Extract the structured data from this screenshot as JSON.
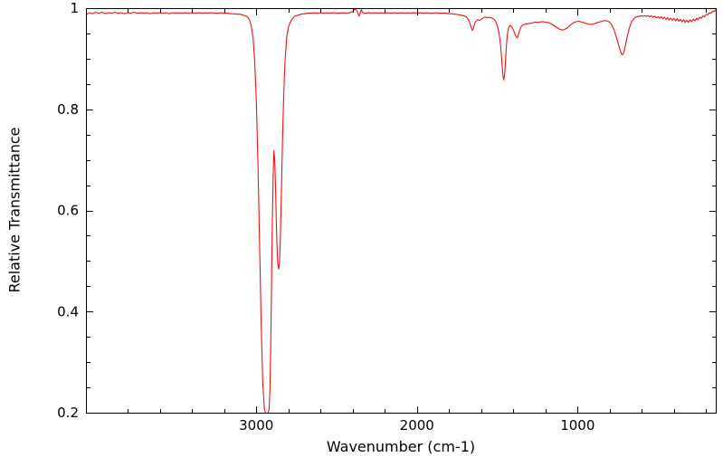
{
  "chart_data": {
    "type": "line",
    "title": "",
    "xlabel": "Wavenumber (cm-1)",
    "ylabel": "Relative Transmittance",
    "x_axis_reversed": true,
    "xlim": [
      4060,
      140
    ],
    "ylim": [
      0.2,
      1.0
    ],
    "grid": false,
    "legend": "none",
    "line_color": "#ee1111",
    "background": "#ffffff",
    "x_ticks": [
      {
        "value": 3000,
        "label": "3000"
      },
      {
        "value": 2000,
        "label": "2000"
      },
      {
        "value": 1000,
        "label": "1000"
      }
    ],
    "y_ticks": [
      {
        "value": 1.0,
        "label": "1"
      },
      {
        "value": 0.8,
        "label": "0.8"
      },
      {
        "value": 0.6,
        "label": "0.6"
      },
      {
        "value": 0.4,
        "label": "0.4"
      },
      {
        "value": 0.2,
        "label": "0.2"
      }
    ],
    "x_minor_step": 200,
    "y_minor_step": 0.05,
    "peak_annotations": [
      {
        "wavenumber": 2940,
        "transmittance": 0.2
      },
      {
        "wavenumber": 2860,
        "transmittance": 0.48
      },
      {
        "wavenumber": 1460,
        "transmittance": 0.86
      },
      {
        "wavenumber": 1375,
        "transmittance": 0.94
      },
      {
        "wavenumber": 720,
        "transmittance": 0.91
      }
    ],
    "points": [
      [
        4059,
        0.987
      ],
      [
        4040,
        0.991
      ],
      [
        4020,
        0.989
      ],
      [
        4000,
        0.992
      ],
      [
        3980,
        0.99
      ],
      [
        3960,
        0.992
      ],
      [
        3940,
        0.989
      ],
      [
        3920,
        0.991
      ],
      [
        3900,
        0.99
      ],
      [
        3880,
        0.992
      ],
      [
        3860,
        0.99
      ],
      [
        3840,
        0.991
      ],
      [
        3820,
        0.989
      ],
      [
        3800,
        0.991
      ],
      [
        3780,
        0.99
      ],
      [
        3760,
        0.992
      ],
      [
        3740,
        0.99
      ],
      [
        3720,
        0.991
      ],
      [
        3700,
        0.99
      ],
      [
        3680,
        0.991
      ],
      [
        3660,
        0.989
      ],
      [
        3640,
        0.991
      ],
      [
        3620,
        0.99
      ],
      [
        3600,
        0.991
      ],
      [
        3580,
        0.99
      ],
      [
        3560,
        0.991
      ],
      [
        3540,
        0.989
      ],
      [
        3520,
        0.991
      ],
      [
        3500,
        0.99
      ],
      [
        3480,
        0.991
      ],
      [
        3460,
        0.99
      ],
      [
        3440,
        0.991
      ],
      [
        3420,
        0.99
      ],
      [
        3400,
        0.991
      ],
      [
        3380,
        0.99
      ],
      [
        3360,
        0.991
      ],
      [
        3340,
        0.99
      ],
      [
        3320,
        0.991
      ],
      [
        3300,
        0.99
      ],
      [
        3280,
        0.991
      ],
      [
        3260,
        0.99
      ],
      [
        3240,
        0.99
      ],
      [
        3220,
        0.991
      ],
      [
        3200,
        0.99
      ],
      [
        3180,
        0.99
      ],
      [
        3160,
        0.989
      ],
      [
        3140,
        0.989
      ],
      [
        3120,
        0.988
      ],
      [
        3100,
        0.988
      ],
      [
        3080,
        0.986
      ],
      [
        3060,
        0.984
      ],
      [
        3050,
        0.981
      ],
      [
        3040,
        0.975
      ],
      [
        3030,
        0.963
      ],
      [
        3020,
        0.941
      ],
      [
        3010,
        0.896
      ],
      [
        3000,
        0.82
      ],
      [
        2990,
        0.7
      ],
      [
        2980,
        0.545
      ],
      [
        2970,
        0.385
      ],
      [
        2960,
        0.262
      ],
      [
        2950,
        0.208
      ],
      [
        2940,
        0.197
      ],
      [
        2930,
        0.196
      ],
      [
        2920,
        0.206
      ],
      [
        2915,
        0.247
      ],
      [
        2910,
        0.33
      ],
      [
        2905,
        0.452
      ],
      [
        2900,
        0.575
      ],
      [
        2895,
        0.665
      ],
      [
        2890,
        0.718
      ],
      [
        2885,
        0.7
      ],
      [
        2880,
        0.645
      ],
      [
        2875,
        0.575
      ],
      [
        2870,
        0.52
      ],
      [
        2865,
        0.492
      ],
      [
        2860,
        0.484
      ],
      [
        2855,
        0.5
      ],
      [
        2850,
        0.545
      ],
      [
        2845,
        0.615
      ],
      [
        2840,
        0.69
      ],
      [
        2835,
        0.76
      ],
      [
        2830,
        0.82
      ],
      [
        2825,
        0.866
      ],
      [
        2820,
        0.9
      ],
      [
        2810,
        0.944
      ],
      [
        2800,
        0.962
      ],
      [
        2790,
        0.971
      ],
      [
        2780,
        0.977
      ],
      [
        2770,
        0.981
      ],
      [
        2760,
        0.984
      ],
      [
        2740,
        0.986
      ],
      [
        2720,
        0.988
      ],
      [
        2700,
        0.989
      ],
      [
        2680,
        0.99
      ],
      [
        2660,
        0.99
      ],
      [
        2640,
        0.991
      ],
      [
        2620,
        0.99
      ],
      [
        2600,
        0.991
      ],
      [
        2580,
        0.99
      ],
      [
        2560,
        0.991
      ],
      [
        2540,
        0.99
      ],
      [
        2520,
        0.991
      ],
      [
        2500,
        0.99
      ],
      [
        2480,
        0.99
      ],
      [
        2460,
        0.991
      ],
      [
        2440,
        0.99
      ],
      [
        2420,
        0.991
      ],
      [
        2400,
        0.993
      ],
      [
        2390,
        0.997
      ],
      [
        2380,
        0.998
      ],
      [
        2370,
        0.992
      ],
      [
        2360,
        0.984
      ],
      [
        2355,
        0.988
      ],
      [
        2350,
        0.994
      ],
      [
        2345,
        0.997
      ],
      [
        2340,
        0.992
      ],
      [
        2330,
        0.99
      ],
      [
        2320,
        0.99
      ],
      [
        2300,
        0.991
      ],
      [
        2280,
        0.99
      ],
      [
        2260,
        0.991
      ],
      [
        2240,
        0.99
      ],
      [
        2220,
        0.991
      ],
      [
        2200,
        0.99
      ],
      [
        2180,
        0.991
      ],
      [
        2160,
        0.99
      ],
      [
        2140,
        0.991
      ],
      [
        2120,
        0.99
      ],
      [
        2100,
        0.991
      ],
      [
        2080,
        0.99
      ],
      [
        2060,
        0.991
      ],
      [
        2040,
        0.99
      ],
      [
        2020,
        0.991
      ],
      [
        2000,
        0.99
      ],
      [
        1980,
        0.991
      ],
      [
        1960,
        0.99
      ],
      [
        1940,
        0.991
      ],
      [
        1920,
        0.99
      ],
      [
        1900,
        0.99
      ],
      [
        1880,
        0.991
      ],
      [
        1860,
        0.99
      ],
      [
        1840,
        0.99
      ],
      [
        1820,
        0.99
      ],
      [
        1800,
        0.989
      ],
      [
        1780,
        0.989
      ],
      [
        1760,
        0.988
      ],
      [
        1740,
        0.987
      ],
      [
        1720,
        0.986
      ],
      [
        1700,
        0.984
      ],
      [
        1690,
        0.982
      ],
      [
        1680,
        0.978
      ],
      [
        1670,
        0.97
      ],
      [
        1660,
        0.96
      ],
      [
        1655,
        0.956
      ],
      [
        1650,
        0.958
      ],
      [
        1645,
        0.964
      ],
      [
        1640,
        0.97
      ],
      [
        1630,
        0.975
      ],
      [
        1620,
        0.977
      ],
      [
        1610,
        0.976
      ],
      [
        1600,
        0.978
      ],
      [
        1590,
        0.98
      ],
      [
        1580,
        0.982
      ],
      [
        1570,
        0.982
      ],
      [
        1560,
        0.981
      ],
      [
        1550,
        0.982
      ],
      [
        1540,
        0.981
      ],
      [
        1530,
        0.98
      ],
      [
        1520,
        0.978
      ],
      [
        1510,
        0.974
      ],
      [
        1500,
        0.966
      ],
      [
        1490,
        0.952
      ],
      [
        1485,
        0.942
      ],
      [
        1480,
        0.928
      ],
      [
        1475,
        0.91
      ],
      [
        1470,
        0.888
      ],
      [
        1465,
        0.868
      ],
      [
        1460,
        0.858
      ],
      [
        1455,
        0.866
      ],
      [
        1450,
        0.888
      ],
      [
        1445,
        0.916
      ],
      [
        1440,
        0.938
      ],
      [
        1435,
        0.952
      ],
      [
        1430,
        0.96
      ],
      [
        1425,
        0.964
      ],
      [
        1420,
        0.966
      ],
      [
        1415,
        0.965
      ],
      [
        1410,
        0.963
      ],
      [
        1405,
        0.96
      ],
      [
        1400,
        0.957
      ],
      [
        1395,
        0.953
      ],
      [
        1390,
        0.949
      ],
      [
        1385,
        0.945
      ],
      [
        1380,
        0.942
      ],
      [
        1375,
        0.941
      ],
      [
        1370,
        0.945
      ],
      [
        1365,
        0.951
      ],
      [
        1360,
        0.957
      ],
      [
        1355,
        0.961
      ],
      [
        1350,
        0.964
      ],
      [
        1340,
        0.967
      ],
      [
        1330,
        0.968
      ],
      [
        1320,
        0.969
      ],
      [
        1310,
        0.969
      ],
      [
        1300,
        0.97
      ],
      [
        1290,
        0.97
      ],
      [
        1280,
        0.971
      ],
      [
        1270,
        0.972
      ],
      [
        1260,
        0.972
      ],
      [
        1250,
        0.972
      ],
      [
        1240,
        0.972
      ],
      [
        1230,
        0.973
      ],
      [
        1220,
        0.973
      ],
      [
        1210,
        0.973
      ],
      [
        1200,
        0.972
      ],
      [
        1190,
        0.972
      ],
      [
        1180,
        0.971
      ],
      [
        1170,
        0.97
      ],
      [
        1160,
        0.968
      ],
      [
        1150,
        0.966
      ],
      [
        1140,
        0.964
      ],
      [
        1130,
        0.962
      ],
      [
        1120,
        0.96
      ],
      [
        1110,
        0.958
      ],
      [
        1100,
        0.957
      ],
      [
        1090,
        0.957
      ],
      [
        1080,
        0.958
      ],
      [
        1070,
        0.96
      ],
      [
        1060,
        0.962
      ],
      [
        1050,
        0.965
      ],
      [
        1040,
        0.968
      ],
      [
        1030,
        0.97
      ],
      [
        1020,
        0.972
      ],
      [
        1010,
        0.973
      ],
      [
        1000,
        0.974
      ],
      [
        990,
        0.974
      ],
      [
        980,
        0.973
      ],
      [
        970,
        0.972
      ],
      [
        960,
        0.971
      ],
      [
        950,
        0.97
      ],
      [
        940,
        0.969
      ],
      [
        930,
        0.968
      ],
      [
        920,
        0.968
      ],
      [
        910,
        0.968
      ],
      [
        900,
        0.969
      ],
      [
        890,
        0.97
      ],
      [
        880,
        0.971
      ],
      [
        870,
        0.972
      ],
      [
        860,
        0.973
      ],
      [
        850,
        0.974
      ],
      [
        840,
        0.975
      ],
      [
        830,
        0.975
      ],
      [
        820,
        0.975
      ],
      [
        810,
        0.974
      ],
      [
        800,
        0.972
      ],
      [
        790,
        0.968
      ],
      [
        780,
        0.962
      ],
      [
        770,
        0.954
      ],
      [
        760,
        0.944
      ],
      [
        750,
        0.933
      ],
      [
        740,
        0.922
      ],
      [
        735,
        0.917
      ],
      [
        730,
        0.912
      ],
      [
        725,
        0.909
      ],
      [
        720,
        0.908
      ],
      [
        715,
        0.91
      ],
      [
        710,
        0.915
      ],
      [
        705,
        0.922
      ],
      [
        700,
        0.93
      ],
      [
        690,
        0.945
      ],
      [
        680,
        0.958
      ],
      [
        670,
        0.968
      ],
      [
        660,
        0.975
      ],
      [
        650,
        0.979
      ],
      [
        640,
        0.982
      ],
      [
        630,
        0.983
      ],
      [
        620,
        0.984
      ],
      [
        610,
        0.984
      ],
      [
        600,
        0.985
      ],
      [
        590,
        0.984
      ],
      [
        580,
        0.985
      ],
      [
        570,
        0.984
      ],
      [
        560,
        0.985
      ],
      [
        550,
        0.983
      ],
      [
        540,
        0.985
      ],
      [
        530,
        0.982
      ],
      [
        520,
        0.984
      ],
      [
        510,
        0.981
      ],
      [
        500,
        0.983
      ],
      [
        490,
        0.98
      ],
      [
        480,
        0.983
      ],
      [
        470,
        0.979
      ],
      [
        460,
        0.982
      ],
      [
        450,
        0.978
      ],
      [
        440,
        0.981
      ],
      [
        430,
        0.977
      ],
      [
        420,
        0.98
      ],
      [
        410,
        0.976
      ],
      [
        400,
        0.98
      ],
      [
        390,
        0.975
      ],
      [
        380,
        0.979
      ],
      [
        370,
        0.974
      ],
      [
        360,
        0.978
      ],
      [
        350,
        0.973
      ],
      [
        340,
        0.977
      ],
      [
        330,
        0.972
      ],
      [
        320,
        0.976
      ],
      [
        310,
        0.972
      ],
      [
        300,
        0.977
      ],
      [
        290,
        0.973
      ],
      [
        280,
        0.978
      ],
      [
        270,
        0.975
      ],
      [
        260,
        0.98
      ],
      [
        250,
        0.977
      ],
      [
        240,
        0.982
      ],
      [
        230,
        0.98
      ],
      [
        220,
        0.985
      ],
      [
        210,
        0.983
      ],
      [
        200,
        0.988
      ],
      [
        190,
        0.987
      ],
      [
        180,
        0.991
      ],
      [
        170,
        0.99
      ],
      [
        160,
        0.994
      ],
      [
        150,
        0.993
      ],
      [
        140,
        0.997
      ]
    ]
  }
}
